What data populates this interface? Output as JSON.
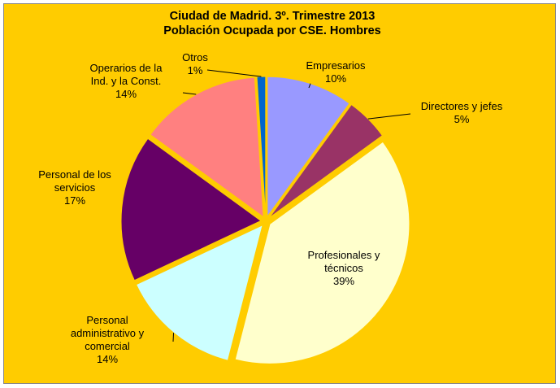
{
  "chart_data": {
    "type": "pie",
    "title": "Ciudad de Madrid. 3º. Trimestre 2013",
    "subtitle": "Población Ocupada por CSE. Hombres",
    "categories": [
      "Empresarios",
      "Directores y jefes",
      "Profesionales y\ntécnicos",
      "Personal\nadministrativo y\ncomercial",
      "Personal de los\nservicios",
      "Operarios de la\nInd. y la Const.",
      "Otros"
    ],
    "values": [
      10,
      5,
      39,
      14,
      17,
      14,
      1
    ],
    "value_labels": [
      "10%",
      "5%",
      "39%",
      "14%",
      "17%",
      "14%",
      "1%"
    ],
    "colors": [
      "#9999FF",
      "#993366",
      "#FFFFCC",
      "#CCFFFF",
      "#660066",
      "#FF8080",
      "#0066CC"
    ]
  }
}
